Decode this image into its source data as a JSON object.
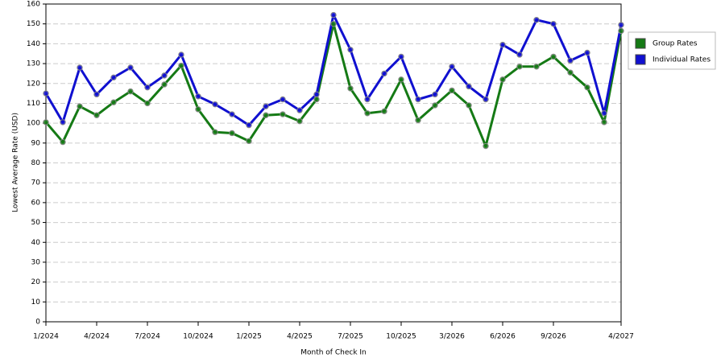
{
  "chart_data": {
    "type": "line",
    "x_label": "Month of Check In",
    "y_label": "Lowest Average Rate (USD)",
    "categories": [
      "1/2024",
      null,
      null,
      "4/2024",
      null,
      null,
      "7/2024",
      null,
      null,
      "10/2024",
      null,
      null,
      "1/2025",
      null,
      null,
      "4/2025",
      null,
      null,
      "7/2025",
      null,
      null,
      "10/2025",
      null,
      null,
      "3/2026",
      null,
      null,
      "6/2026",
      null,
      null,
      "9/2026",
      null,
      null,
      null,
      "4/2027"
    ],
    "series": [
      {
        "name": "Group Rates",
        "color": "#157a15",
        "values": [
          100.5,
          90.5,
          108.5,
          104,
          110.5,
          116,
          110,
          119.5,
          129,
          107,
          95.5,
          95,
          91,
          104,
          104.5,
          101,
          112,
          150,
          117.5,
          105,
          106,
          122,
          101.5,
          109,
          116.5,
          109,
          88.5,
          122,
          128.5,
          128.5,
          133.5,
          125.5,
          118,
          100.5,
          146.5
        ]
      },
      {
        "name": "Individual Rates",
        "color": "#1010d0",
        "values": [
          115,
          100.5,
          128,
          114.5,
          123,
          128,
          118,
          124,
          134.5,
          113.5,
          109.5,
          104.5,
          99,
          108.5,
          112,
          106.5,
          114.5,
          154.5,
          137,
          112,
          125,
          133.5,
          112,
          114.5,
          128.5,
          118.5,
          112,
          139.5,
          134.5,
          152,
          150,
          131.5,
          135.5,
          105,
          149.5
        ]
      }
    ],
    "ylim": [
      0,
      160
    ],
    "yticks": [
      0,
      10,
      20,
      30,
      40,
      50,
      60,
      70,
      80,
      90,
      100,
      110,
      120,
      130,
      140,
      150,
      160
    ],
    "grid": true,
    "legend": "right"
  }
}
